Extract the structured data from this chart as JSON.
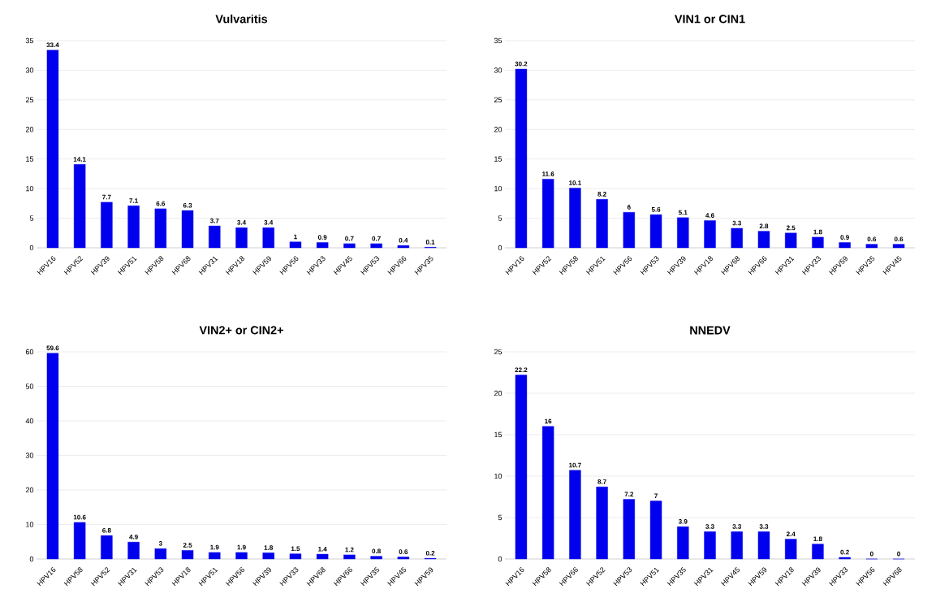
{
  "chart_data": [
    {
      "type": "bar",
      "title": "Vulvaritis",
      "categories": [
        "HPV16",
        "HPV52",
        "HPV39",
        "HPV51",
        "HPV58",
        "HPV68",
        "HPV31",
        "HPV18",
        "HPV59",
        "HPV56",
        "HPV33",
        "HPV45",
        "HPV53",
        "HPV66",
        "HPV35"
      ],
      "values": [
        33.4,
        14.1,
        7.7,
        7.1,
        6.6,
        6.3,
        3.7,
        3.4,
        3.4,
        1,
        0.9,
        0.7,
        0.7,
        0.4,
        0.1
      ],
      "color": "#0000ee",
      "ylim": [
        0,
        35
      ],
      "yticks": [
        0,
        5,
        10,
        15,
        20,
        25,
        30,
        35
      ],
      "grid": "y",
      "data_labels": true
    },
    {
      "type": "bar",
      "title": "VIN1 or CIN1",
      "categories": [
        "HPV16",
        "HPV52",
        "HPV58",
        "HPV51",
        "HPV56",
        "HPV53",
        "HPV39",
        "HPV18",
        "HPV68",
        "HPV66",
        "HPV31",
        "HPV33",
        "HPV59",
        "HPV35",
        "HPV45"
      ],
      "values": [
        30.2,
        11.6,
        10.1,
        8.2,
        6,
        5.6,
        5.1,
        4.6,
        3.3,
        2.8,
        2.5,
        1.8,
        0.9,
        0.6,
        0.6
      ],
      "color": "#0000ee",
      "ylim": [
        0,
        35
      ],
      "yticks": [
        0,
        5,
        10,
        15,
        20,
        25,
        30,
        35
      ],
      "grid": "y",
      "data_labels": true
    },
    {
      "type": "bar",
      "title": "VIN2+ or CIN2+",
      "categories": [
        "HPV16",
        "HPV58",
        "HPV52",
        "HPV31",
        "HPV53",
        "HPV18",
        "HPV51",
        "HPV56",
        "HPV39",
        "HPV33",
        "HPV68",
        "HPV66",
        "HPV35",
        "HPV45",
        "HPV59"
      ],
      "values": [
        59.6,
        10.6,
        6.8,
        4.9,
        3,
        2.5,
        1.9,
        1.9,
        1.8,
        1.5,
        1.4,
        1.2,
        0.8,
        0.6,
        0.2
      ],
      "color": "#0000ee",
      "ylim": [
        0,
        60
      ],
      "yticks": [
        0,
        10,
        20,
        30,
        40,
        50,
        60
      ],
      "grid": "y",
      "data_labels": true
    },
    {
      "type": "bar",
      "title": "NNEDV",
      "categories": [
        "HPV16",
        "HPV58",
        "HPV66",
        "HPV52",
        "HPV53",
        "HPV51",
        "HPV35",
        "HPV31",
        "HPV45",
        "HPV59",
        "HPV18",
        "HPV39",
        "HPV33",
        "HPV56",
        "HPV68"
      ],
      "values": [
        22.2,
        16,
        10.7,
        8.7,
        7.2,
        7,
        3.9,
        3.3,
        3.3,
        3.3,
        2.4,
        1.8,
        0.2,
        0,
        0
      ],
      "color": "#0000ee",
      "ylim": [
        0,
        25
      ],
      "yticks": [
        0,
        5,
        10,
        15,
        20,
        25
      ],
      "grid": "y",
      "data_labels": true
    }
  ]
}
